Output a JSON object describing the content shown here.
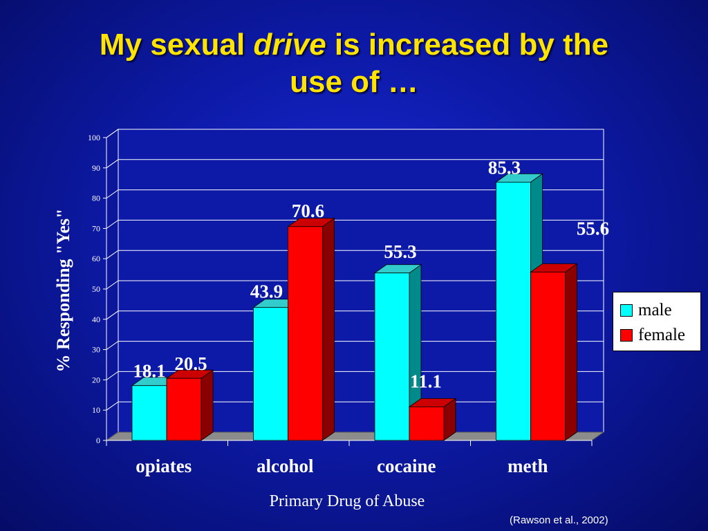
{
  "title": {
    "part1": "My sexual",
    "emphasis": "drive",
    "part2": "is increased by the",
    "line2": "use of …"
  },
  "citation": "(Rawson et al., 2002)",
  "colors": {
    "male": "#00ffff",
    "female": "#ff0000",
    "title": "#ffe400"
  },
  "chart_data": {
    "type": "bar",
    "categories": [
      "opiates",
      "alcohol",
      "cocaine",
      "meth"
    ],
    "series": [
      {
        "name": "male",
        "values": [
          18.1,
          43.9,
          55.3,
          85.3
        ]
      },
      {
        "name": "female",
        "values": [
          20.5,
          70.6,
          11.1,
          55.6
        ]
      }
    ],
    "data_labels": [
      [
        "18.1",
        "43.9",
        "55.3",
        "85.3"
      ],
      [
        "20.5",
        "70.6",
        "11.1",
        "55.6"
      ]
    ],
    "xlabel": "Primary Drug of Abuse",
    "ylabel": "% Responding \"Yes\"",
    "ylim": [
      0,
      100
    ],
    "yticks": [
      "0",
      "10",
      "20",
      "30",
      "40",
      "50",
      "60",
      "70",
      "80",
      "90",
      "100"
    ],
    "grid": true,
    "legend_position": "right"
  }
}
